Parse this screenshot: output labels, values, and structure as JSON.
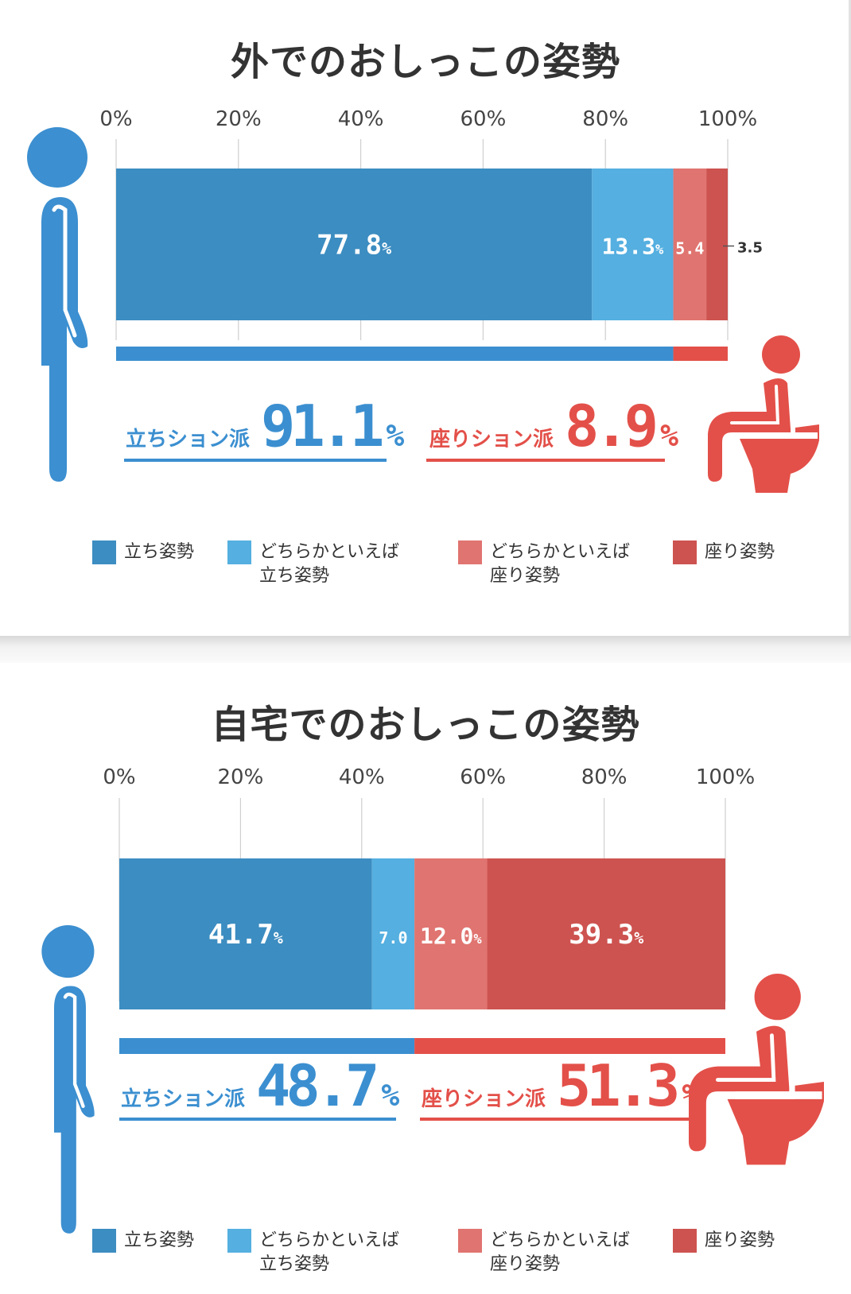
{
  "colors": {
    "stand": "#3c8dc1",
    "lean_stand": "#55afe0",
    "lean_sit": "#e07470",
    "sit": "#cd5350",
    "blue_total": "#3b8fd0",
    "red_total": "#e35049",
    "figure_blue": "#3c8fd0",
    "figure_red": "#e35049"
  },
  "chart_data": [
    {
      "type": "bar",
      "orientation": "horizontal",
      "stacked": true,
      "title": "外でのおしっこの姿勢",
      "xlim": [
        0,
        100
      ],
      "tick_labels": [
        "0%",
        "20%",
        "40%",
        "60%",
        "80%",
        "100%"
      ],
      "ticks": [
        0,
        20,
        40,
        60,
        80,
        100
      ],
      "series": [
        {
          "name": "立ち姿勢",
          "value": 77.8,
          "num": "77.8",
          "unit": "%",
          "label_position": "inside"
        },
        {
          "name": "どちらかといえば立ち姿勢",
          "value": 13.3,
          "num": "13.3",
          "unit": "%",
          "label_position": "inside"
        },
        {
          "name": "どちらかといえば座り姿勢",
          "value": 5.4,
          "num": "5.4",
          "unit": "",
          "label_position": "inside"
        },
        {
          "name": "座り姿勢",
          "value": 3.5,
          "num": "3.5",
          "unit": "",
          "label_position": "outside"
        }
      ],
      "totals": [
        {
          "label": "立ちション派",
          "value": 91.1,
          "num": "91.1",
          "unit": "%"
        },
        {
          "label": "座りション派",
          "value": 8.9,
          "num": "8.9",
          "unit": "%"
        }
      ],
      "legend": [
        {
          "lines": [
            "立ち姿勢"
          ]
        },
        {
          "lines": [
            "どちらかといえば",
            "立ち姿勢"
          ]
        },
        {
          "lines": [
            "どちらかといえば",
            "座り姿勢"
          ]
        },
        {
          "lines": [
            "座り姿勢"
          ]
        }
      ],
      "legend_position": "bottom",
      "grid": true
    },
    {
      "type": "bar",
      "orientation": "horizontal",
      "stacked": true,
      "title": "自宅でのおしっこの姿勢",
      "xlim": [
        0,
        100
      ],
      "tick_labels": [
        "0%",
        "20%",
        "40%",
        "60%",
        "80%",
        "100%"
      ],
      "ticks": [
        0,
        20,
        40,
        60,
        80,
        100
      ],
      "series": [
        {
          "name": "立ち姿勢",
          "value": 41.7,
          "num": "41.7",
          "unit": "%",
          "label_position": "inside"
        },
        {
          "name": "どちらかといえば立ち姿勢",
          "value": 7.0,
          "num": "7.0",
          "unit": "",
          "label_position": "inside"
        },
        {
          "name": "どちらかといえば座り姿勢",
          "value": 12.0,
          "num": "12.0",
          "unit": "%",
          "label_position": "inside"
        },
        {
          "name": "座り姿勢",
          "value": 39.3,
          "num": "39.3",
          "unit": "%",
          "label_position": "inside"
        }
      ],
      "totals": [
        {
          "label": "立ちション派",
          "value": 48.7,
          "num": "48.7",
          "unit": "%"
        },
        {
          "label": "座りション派",
          "value": 51.3,
          "num": "51.3",
          "unit": "%"
        }
      ],
      "legend": [
        {
          "lines": [
            "立ち姿勢"
          ]
        },
        {
          "lines": [
            "どちらかといえば",
            "立ち姿勢"
          ]
        },
        {
          "lines": [
            "どちらかといえば",
            "座り姿勢"
          ]
        },
        {
          "lines": [
            "座り姿勢"
          ]
        }
      ],
      "legend_position": "bottom",
      "grid": true
    }
  ]
}
